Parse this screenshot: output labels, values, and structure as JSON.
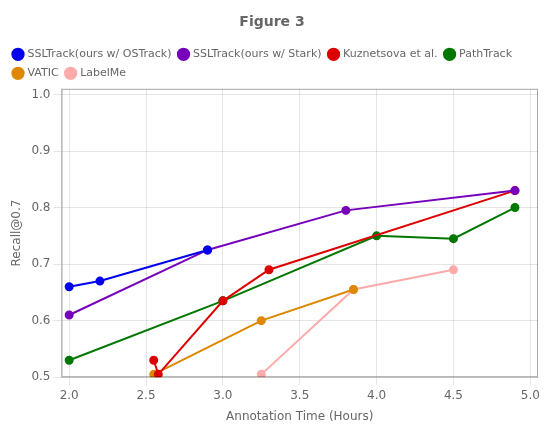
{
  "chart_data": {
    "type": "line",
    "title": "Figure 3",
    "xlabel": "Annotation Time (Hours)",
    "ylabel": "Recall@0.7",
    "xlim": [
      1.95,
      5.05
    ],
    "ylim": [
      0.5,
      1.01
    ],
    "xticks": [
      {
        "value": 2.0,
        "label": "2.0"
      },
      2.5,
      {
        "value": 3.0,
        "label": "3.0"
      },
      3.5,
      {
        "value": 4.0,
        "label": "4.0"
      },
      4.5,
      {
        "value": 5.0,
        "label": "5.0"
      }
    ],
    "yticks": [
      0.5,
      0.6,
      0.7,
      0.8,
      0.9,
      {
        "value": 1.0,
        "label": "1.0"
      }
    ],
    "grid": true,
    "legend": "upper left",
    "series": [
      {
        "name": "SSLTrack(ours w/ OSTrack)",
        "color": "#0000ee",
        "marker": "circle",
        "x": [
          2.0,
          2.2,
          2.9
        ],
        "values": [
          0.66,
          0.67,
          0.725
        ]
      },
      {
        "name": "SSLTrack(ours w/ Stark)",
        "color": "#7700bb",
        "marker": "circle",
        "x": [
          2.0,
          2.9,
          3.8,
          4.9
        ],
        "values": [
          0.61,
          0.725,
          0.795,
          0.83
        ]
      },
      {
        "name": "Kuznetsova et al.",
        "color": "#dd0000",
        "marker": "circle",
        "x": [
          2.55,
          2.58,
          3.0,
          3.3,
          4.9
        ],
        "values": [
          0.53,
          0.505,
          0.635,
          0.69,
          0.83
        ]
      },
      {
        "name": "PathTrack",
        "color": "#007700",
        "marker": "circle",
        "x": [
          2.0,
          3.0,
          4.0,
          4.5,
          4.9
        ],
        "values": [
          0.53,
          0.635,
          0.75,
          0.745,
          0.8
        ]
      },
      {
        "name": "VATIC",
        "color": "#dd8800",
        "marker": "circle",
        "x": [
          2.55,
          3.25,
          3.85
        ],
        "values": [
          0.505,
          0.6,
          0.655
        ]
      },
      {
        "name": "LabelMe",
        "color": "#ffaaaa",
        "marker": "circle",
        "x": [
          3.25,
          3.85,
          4.5
        ],
        "values": [
          0.505,
          0.655,
          0.69
        ]
      }
    ]
  }
}
